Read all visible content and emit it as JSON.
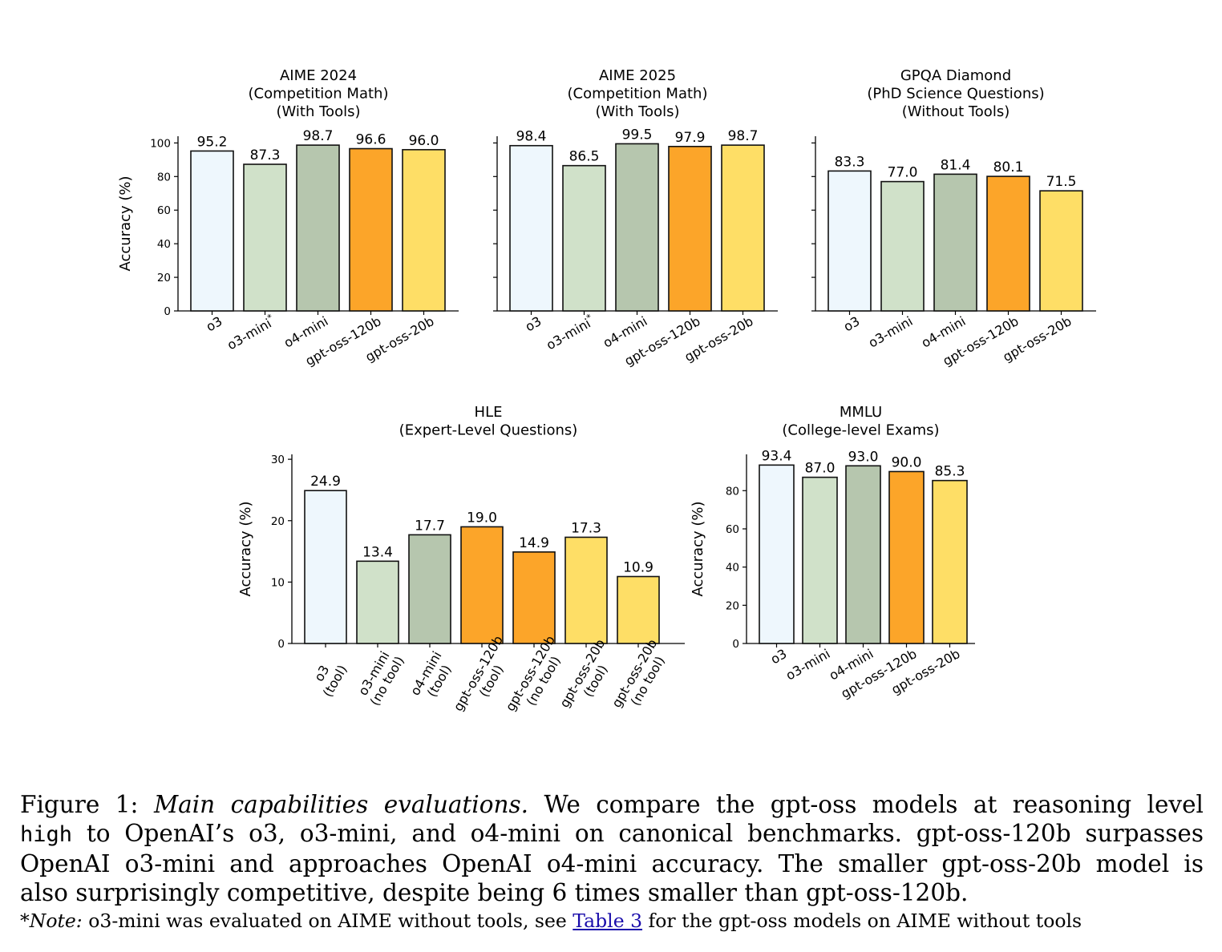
{
  "chart_data": [
    {
      "type": "bar",
      "title": "AIME 2024\n(Competition Math)\n(With Tools)",
      "ylabel": "Accuracy (%)",
      "ylim": [
        0,
        104
      ],
      "yticks": [
        0,
        20,
        40,
        60,
        80,
        100
      ],
      "categories": [
        "o3",
        "o3-mini*",
        "o4-mini",
        "gpt-oss-120b",
        "gpt-oss-20b"
      ],
      "values": [
        95.2,
        87.3,
        98.7,
        96.6,
        96.0
      ],
      "value_labels": [
        "95.2",
        "87.3",
        "98.7",
        "96.6",
        "96.0"
      ]
    },
    {
      "type": "bar",
      "title": "AIME 2025\n(Competition Math)\n(With Tools)",
      "ylabel": "",
      "ylim": [
        0,
        104
      ],
      "yticks": [
        0,
        20,
        40,
        60,
        80,
        100
      ],
      "categories": [
        "o3",
        "o3-mini*",
        "o4-mini",
        "gpt-oss-120b",
        "gpt-oss-20b"
      ],
      "values": [
        98.4,
        86.5,
        99.5,
        97.9,
        98.7
      ],
      "value_labels": [
        "98.4",
        "86.5",
        "99.5",
        "97.9",
        "98.7"
      ]
    },
    {
      "type": "bar",
      "title": "GPQA Diamond\n(PhD Science Questions)\n(Without Tools)",
      "ylabel": "",
      "ylim": [
        0,
        104
      ],
      "yticks": [
        0,
        20,
        40,
        60,
        80,
        100
      ],
      "categories": [
        "o3",
        "o3-mini",
        "o4-mini",
        "gpt-oss-120b",
        "gpt-oss-20b"
      ],
      "values": [
        83.3,
        77.0,
        81.4,
        80.1,
        71.5
      ],
      "value_labels": [
        "83.3",
        "77.0",
        "81.4",
        "80.1",
        "71.5"
      ]
    },
    {
      "type": "bar",
      "title": "HLE\n(Expert-Level Questions)",
      "ylabel": "Accuracy (%)",
      "ylim": [
        0,
        30.8
      ],
      "yticks": [
        0,
        10,
        20,
        30
      ],
      "categories": [
        "o3\n(tool)",
        "o3-mini\n(no tool)",
        "o4-mini\n(tool)",
        "gpt-oss-120b\n(tool)",
        "gpt-oss-120b\n(no tool)",
        "gpt-oss-20b\n(tool)",
        "gpt-oss-20b\n(no tool)"
      ],
      "values": [
        24.9,
        13.4,
        17.7,
        19.0,
        14.9,
        17.3,
        10.9
      ],
      "value_labels": [
        "24.9",
        "13.4",
        "17.7",
        "19.0",
        "14.9",
        "17.3",
        "10.9"
      ]
    },
    {
      "type": "bar",
      "title": "MMLU\n(College-level Exams)",
      "ylabel": "Accuracy (%)",
      "ylim": [
        0,
        99
      ],
      "yticks": [
        0,
        20,
        40,
        60,
        80
      ],
      "categories": [
        "o3",
        "o3-mini",
        "o4-mini",
        "gpt-oss-120b",
        "gpt-oss-20b"
      ],
      "values": [
        93.4,
        87.0,
        93.0,
        90.0,
        85.3
      ],
      "value_labels": [
        "93.4",
        "87.0",
        "93.0",
        "90.0",
        "85.3"
      ]
    }
  ],
  "model_colors": {
    "o3": "#eef7fd",
    "o3-mini": "#d0e1c9",
    "o4-mini": "#b6c6ae",
    "gpt-oss-120b": "#fca529",
    "gpt-oss-20b": "#fede66"
  },
  "caption": {
    "label": "Figure 1:",
    "title": "Main capabilities evaluations.",
    "text1": "We compare the gpt-oss models at reasoning level",
    "code": "high",
    "text2": "to OpenAI’s o3, o3-mini, and o4-mini on canonical benchmarks. gpt-oss-120b surpasses",
    "text3": "OpenAI o3-mini and approaches OpenAI o4-mini accuracy. The smaller gpt-oss-20b model is",
    "text4": "also surprisingly competitive, despite being 6 times smaller than gpt-oss-120b."
  },
  "note": {
    "prefix": "*",
    "label": "Note:",
    "text1": "o3-mini was evaluated on AIME without tools, see",
    "link": "Table 3",
    "text2": "for the gpt-oss models on AIME without tools"
  }
}
